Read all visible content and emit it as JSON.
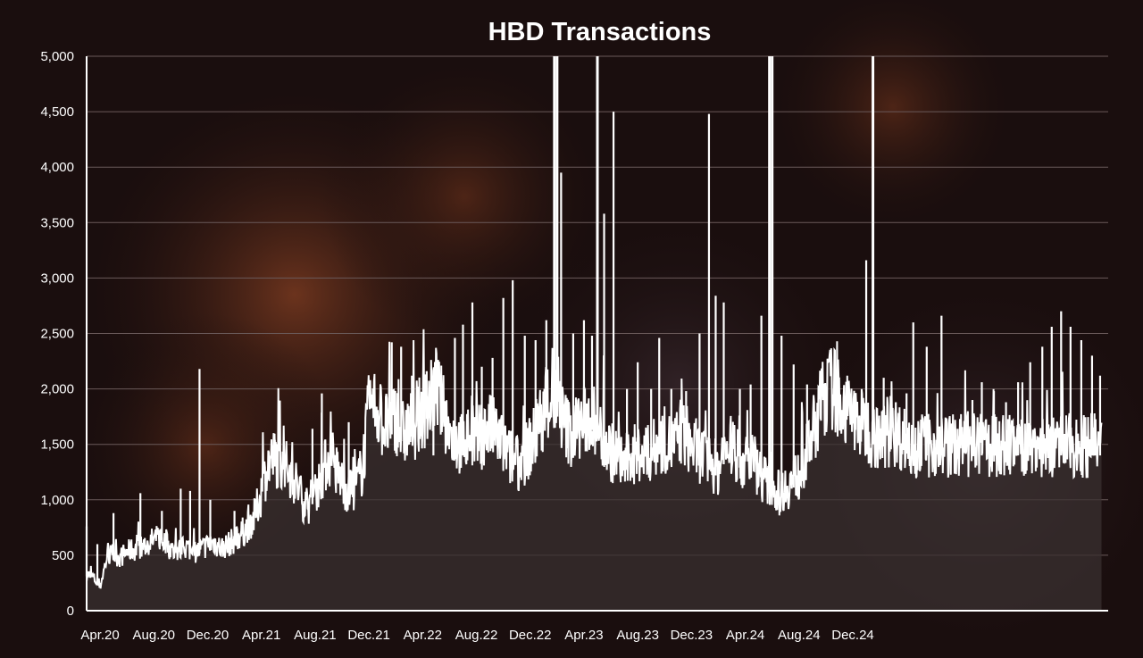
{
  "colors": {
    "background": "#1a0e0e",
    "line": "#ffffff",
    "area_fill": "#3a3030",
    "grid": "#6a5a5a"
  },
  "chart_data": {
    "type": "area",
    "title": "HBD Transactions",
    "xlabel": "",
    "ylabel": "",
    "ylim": [
      0,
      5000
    ],
    "yticks": [
      0,
      500,
      1000,
      1500,
      2000,
      2500,
      3000,
      3500,
      4000,
      4500,
      5000
    ],
    "ytick_labels": [
      "0",
      "500",
      "1,000",
      "1,500",
      "2,000",
      "2,500",
      "3,000",
      "3,500",
      "4,000",
      "4,500",
      "5,000"
    ],
    "xtick_labels": [
      "Apr.20",
      "Aug.20",
      "Dec.20",
      "Apr.21",
      "Aug.21",
      "Dec.21",
      "Apr.22",
      "Aug.22",
      "Dec.22",
      "Apr.23",
      "Aug.23",
      "Dec.23",
      "Apr.24",
      "Aug.24",
      "Dec.24"
    ],
    "x_start": "2020-03",
    "x_end": "2025-05",
    "grid": true,
    "legend": "none",
    "series": [
      {
        "values": [
          [
            0.0,
            310
          ],
          [
            0.5,
            280
          ],
          [
            1.0,
            200
          ],
          [
            1.5,
            450
          ],
          [
            2.0,
            480
          ],
          [
            2.5,
            450
          ],
          [
            3.0,
            500
          ],
          [
            3.5,
            520
          ],
          [
            4.0,
            530
          ],
          [
            4.5,
            560
          ],
          [
            5.0,
            600
          ],
          [
            5.5,
            620
          ],
          [
            6.0,
            560
          ],
          [
            6.5,
            500
          ],
          [
            7.0,
            520
          ],
          [
            7.5,
            540
          ],
          [
            8.0,
            500
          ],
          [
            8.5,
            520
          ],
          [
            9.0,
            560
          ],
          [
            9.5,
            580
          ],
          [
            10.0,
            530
          ],
          [
            10.5,
            560
          ],
          [
            11.0,
            600
          ],
          [
            11.5,
            650
          ],
          [
            12.0,
            720
          ],
          [
            12.5,
            800
          ],
          [
            13.0,
            1000
          ],
          [
            13.5,
            1250
          ],
          [
            14.0,
            1300
          ],
          [
            14.5,
            1250
          ],
          [
            15.0,
            1200
          ],
          [
            15.5,
            1100
          ],
          [
            16.0,
            950
          ],
          [
            16.5,
            900
          ],
          [
            17.0,
            1000
          ],
          [
            17.5,
            1150
          ],
          [
            18.0,
            1300
          ],
          [
            18.5,
            1200
          ],
          [
            19.0,
            1100
          ],
          [
            19.5,
            1000
          ],
          [
            20.0,
            1050
          ],
          [
            20.5,
            1200
          ],
          [
            21.0,
            1700
          ],
          [
            21.5,
            1750
          ],
          [
            22.0,
            1600
          ],
          [
            22.5,
            1550
          ],
          [
            23.0,
            1650
          ],
          [
            23.5,
            1500
          ],
          [
            24.0,
            1550
          ],
          [
            24.5,
            1600
          ],
          [
            25.0,
            1700
          ],
          [
            25.5,
            1750
          ],
          [
            26.0,
            1900
          ],
          [
            26.5,
            1700
          ],
          [
            27.0,
            1500
          ],
          [
            27.5,
            1450
          ],
          [
            28.0,
            1400
          ],
          [
            28.5,
            1500
          ],
          [
            29.0,
            1450
          ],
          [
            29.5,
            1500
          ],
          [
            30.0,
            1550
          ],
          [
            30.5,
            1500
          ],
          [
            31.0,
            1400
          ],
          [
            31.5,
            1300
          ],
          [
            32.0,
            1250
          ],
          [
            32.5,
            1300
          ],
          [
            33.0,
            1400
          ],
          [
            33.5,
            1500
          ],
          [
            34.0,
            1700
          ],
          [
            34.5,
            1800
          ],
          [
            35.0,
            1750
          ],
          [
            35.5,
            1600
          ],
          [
            36.0,
            1500
          ],
          [
            36.5,
            1550
          ],
          [
            37.0,
            1600
          ],
          [
            37.5,
            1650
          ],
          [
            38.0,
            1550
          ],
          [
            38.5,
            1450
          ],
          [
            39.0,
            1350
          ],
          [
            39.5,
            1300
          ],
          [
            40.0,
            1250
          ],
          [
            40.5,
            1300
          ],
          [
            41.0,
            1350
          ],
          [
            41.5,
            1300
          ],
          [
            42.0,
            1350
          ],
          [
            42.5,
            1400
          ],
          [
            43.0,
            1450
          ],
          [
            43.5,
            1400
          ],
          [
            44.0,
            1450
          ],
          [
            44.5,
            1500
          ],
          [
            45.0,
            1400
          ],
          [
            45.5,
            1350
          ],
          [
            46.0,
            1300
          ],
          [
            46.5,
            1250
          ],
          [
            47.0,
            1200
          ],
          [
            47.5,
            1350
          ],
          [
            48.0,
            1400
          ],
          [
            48.5,
            1300
          ],
          [
            49.0,
            1250
          ],
          [
            49.5,
            1300
          ],
          [
            50.0,
            1200
          ],
          [
            50.5,
            1100
          ],
          [
            51.0,
            1050
          ],
          [
            51.5,
            1000
          ],
          [
            52.0,
            1050
          ],
          [
            52.5,
            1100
          ],
          [
            53.0,
            1150
          ],
          [
            53.5,
            1300
          ],
          [
            54.0,
            1500
          ],
          [
            54.5,
            1700
          ],
          [
            55.0,
            1850
          ],
          [
            55.5,
            1900
          ],
          [
            56.0,
            1800
          ],
          [
            56.5,
            1700
          ],
          [
            57.0,
            1650
          ],
          [
            57.5,
            1600
          ],
          [
            58.0,
            1550
          ],
          [
            58.5,
            1500
          ],
          [
            59.0,
            1450
          ],
          [
            59.5,
            1500
          ],
          [
            60.0,
            1520
          ],
          [
            60.5,
            1480
          ],
          [
            61.0,
            1450
          ],
          [
            61.5,
            1400
          ]
        ]
      }
    ],
    "spikes": [
      [
        0.0,
        760
      ],
      [
        0.8,
        600
      ],
      [
        2.0,
        880
      ],
      [
        4.0,
        1060
      ],
      [
        5.6,
        900
      ],
      [
        7.0,
        1100
      ],
      [
        7.7,
        1080
      ],
      [
        8.4,
        2180
      ],
      [
        9.2,
        1000
      ],
      [
        11.0,
        900
      ],
      [
        13.3,
        1160
      ],
      [
        14.0,
        1540
      ],
      [
        15.2,
        1180
      ],
      [
        16.8,
        1640
      ],
      [
        17.5,
        1960
      ],
      [
        19.5,
        1700
      ],
      [
        22.1,
        1620
      ],
      [
        22.7,
        2420
      ],
      [
        23.4,
        2380
      ],
      [
        24.2,
        2120
      ],
      [
        25.3,
        2160
      ],
      [
        25.8,
        1400
      ],
      [
        26.6,
        1660
      ],
      [
        27.4,
        2460
      ],
      [
        28.0,
        2580
      ],
      [
        28.7,
        2780
      ],
      [
        29.4,
        2200
      ],
      [
        30.2,
        2280
      ],
      [
        31.0,
        2820
      ],
      [
        31.7,
        2980
      ],
      [
        32.6,
        2480
      ],
      [
        33.4,
        2440
      ],
      [
        34.2,
        2620
      ],
      [
        34.8,
        5000
      ],
      [
        35.0,
        5000
      ],
      [
        35.3,
        3950
      ],
      [
        36.2,
        2500
      ],
      [
        37.0,
        2620
      ],
      [
        37.6,
        2480
      ],
      [
        38.0,
        5000
      ],
      [
        38.5,
        3580
      ],
      [
        39.2,
        4500
      ],
      [
        40.2,
        2000
      ],
      [
        41.0,
        2240
      ],
      [
        42.0,
        2000
      ],
      [
        42.6,
        2460
      ],
      [
        43.5,
        2000
      ],
      [
        44.6,
        1980
      ],
      [
        45.6,
        2500
      ],
      [
        46.3,
        4480
      ],
      [
        46.8,
        2840
      ],
      [
        47.4,
        2780
      ],
      [
        48.6,
        2000
      ],
      [
        49.4,
        2040
      ],
      [
        50.2,
        2660
      ],
      [
        50.8,
        5000
      ],
      [
        51.0,
        5000
      ],
      [
        51.7,
        2480
      ],
      [
        52.6,
        2220
      ],
      [
        53.6,
        2040
      ],
      [
        54.6,
        2140
      ],
      [
        55.6,
        2000
      ],
      [
        56.4,
        1900
      ],
      [
        57.2,
        1960
      ],
      [
        58.0,
        3160
      ],
      [
        58.5,
        5000
      ],
      [
        59.3,
        2100
      ],
      [
        60.2,
        1880
      ],
      [
        61.0,
        1960
      ],
      [
        61.5,
        2600
      ],
      [
        62.5,
        2380
      ],
      [
        63.6,
        2660
      ],
      [
        64.8,
        1640
      ],
      [
        65.9,
        1900
      ],
      [
        66.6,
        2060
      ],
      [
        67.5,
        1980
      ],
      [
        68.4,
        1880
      ],
      [
        69.3,
        2060
      ],
      [
        70.2,
        2240
      ],
      [
        71.1,
        2380
      ],
      [
        71.8,
        2560
      ],
      [
        72.5,
        2700
      ],
      [
        73.2,
        2560
      ],
      [
        74.0,
        2440
      ],
      [
        74.8,
        2300
      ],
      [
        75.4,
        2120
      ]
    ]
  }
}
